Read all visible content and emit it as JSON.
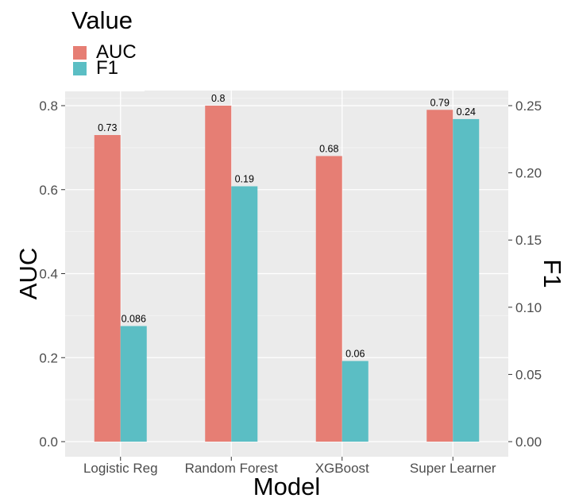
{
  "chart_data": {
    "type": "bar",
    "categories": [
      "Logistic Reg",
      "Random Forest",
      "XGBoost",
      "Super Learner"
    ],
    "series": [
      {
        "name": "AUC",
        "axis": "left",
        "values": [
          0.73,
          0.8,
          0.68,
          0.79
        ],
        "labels": [
          "0.73",
          "0.8",
          "0.68",
          "0.79"
        ],
        "color": "#E67E74"
      },
      {
        "name": "F1",
        "axis": "right",
        "values": [
          0.086,
          0.19,
          0.06,
          0.24
        ],
        "labels": [
          "0.086",
          "0.19",
          "0.06",
          "0.24"
        ],
        "color": "#5BBEC4"
      }
    ],
    "xlabel": "Model",
    "ylabel": "AUC",
    "y2label": "F1",
    "ylim": [
      0,
      0.8
    ],
    "y2lim": [
      0,
      0.25
    ],
    "yticks": [
      "0.0",
      "0.2",
      "0.4",
      "0.6",
      "0.8"
    ],
    "y2ticks": [
      "0.00",
      "0.05",
      "0.10",
      "0.15",
      "0.20",
      "0.25"
    ],
    "grid": true,
    "legend": {
      "title": "Value",
      "position": "top-left"
    }
  },
  "colors": {
    "panel": "#EBEBEB",
    "grid_major": "#FFFFFF",
    "grid_minor": "#F5F5F5"
  }
}
